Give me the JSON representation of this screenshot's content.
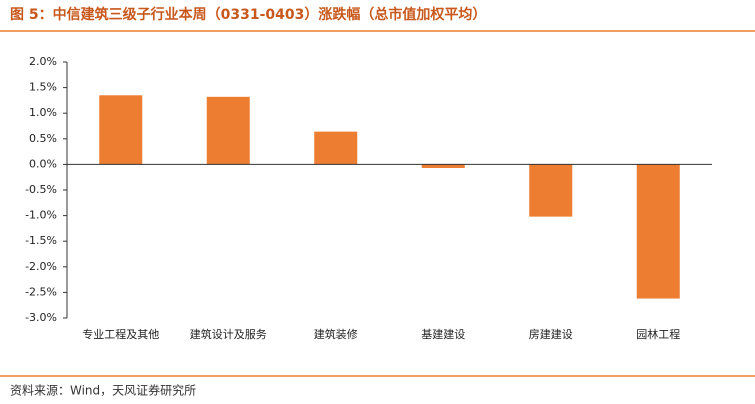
{
  "chart_data": {
    "type": "bar",
    "title": "图 5：中信建筑三级子行业本周（0331-0403）涨跌幅（总市值加权平均）",
    "source": "资料来源：Wind，天风证券研究所",
    "categories": [
      "专业工程及其他",
      "建筑设计及服务",
      "建筑装修",
      "基建建设",
      "房建建设",
      "园林工程"
    ],
    "values": [
      1.35,
      1.32,
      0.64,
      -0.07,
      -1.02,
      -2.62
    ],
    "color": "#ed7d31",
    "ylim": [
      -3.0,
      2.0
    ],
    "yticks": [
      {
        "value": 2.0,
        "label": "2.0%"
      },
      {
        "value": 1.5,
        "label": "1.5%"
      },
      {
        "value": 1.0,
        "label": "1.0%"
      },
      {
        "value": 0.5,
        "label": "0.5%"
      },
      {
        "value": 0.0,
        "label": "0.0%"
      },
      {
        "value": -0.5,
        "label": "-0.5%"
      },
      {
        "value": -1.0,
        "label": "-1.0%"
      },
      {
        "value": -1.5,
        "label": "-1.5%"
      },
      {
        "value": -2.0,
        "label": "-2.0%"
      },
      {
        "value": -2.5,
        "label": "-2.5%"
      },
      {
        "value": -3.0,
        "label": "-3.0%"
      }
    ]
  }
}
